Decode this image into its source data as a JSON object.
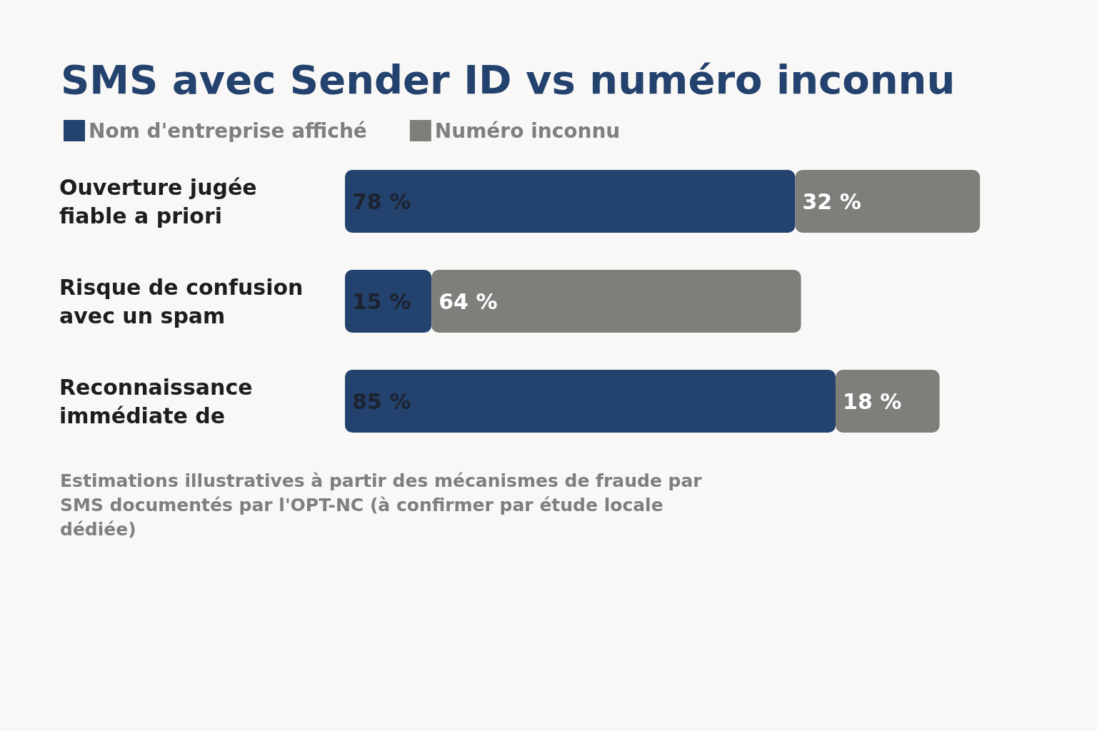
{
  "chart_data": {
    "type": "bar",
    "orientation": "horizontal",
    "stacked": true,
    "title": "SMS avec Sender ID vs numéro inconnu",
    "categories": [
      "Ouverture jugée fiable a priori",
      "Risque de confusion avec un spam",
      "Reconnaissance immédiate de"
    ],
    "series": [
      {
        "name": "Nom d'entreprise affiché",
        "color": "#23426e",
        "values": [
          78,
          15,
          85
        ],
        "value_labels": [
          "78 %",
          "15 %",
          "85 %"
        ]
      },
      {
        "name": "Numéro inconnu",
        "color": "#807e7b",
        "values": [
          32,
          64,
          18
        ],
        "value_labels": [
          "32 %",
          "64 %",
          "18 %"
        ]
      }
    ],
    "legend": "top left",
    "grid": false,
    "relative": false,
    "annotations": [
      "Estimations illustratives à partir des mécanismes de fraude par SMS documentés par l'OPT-NC (à confirmer par étude locale dédiée)"
    ]
  }
}
